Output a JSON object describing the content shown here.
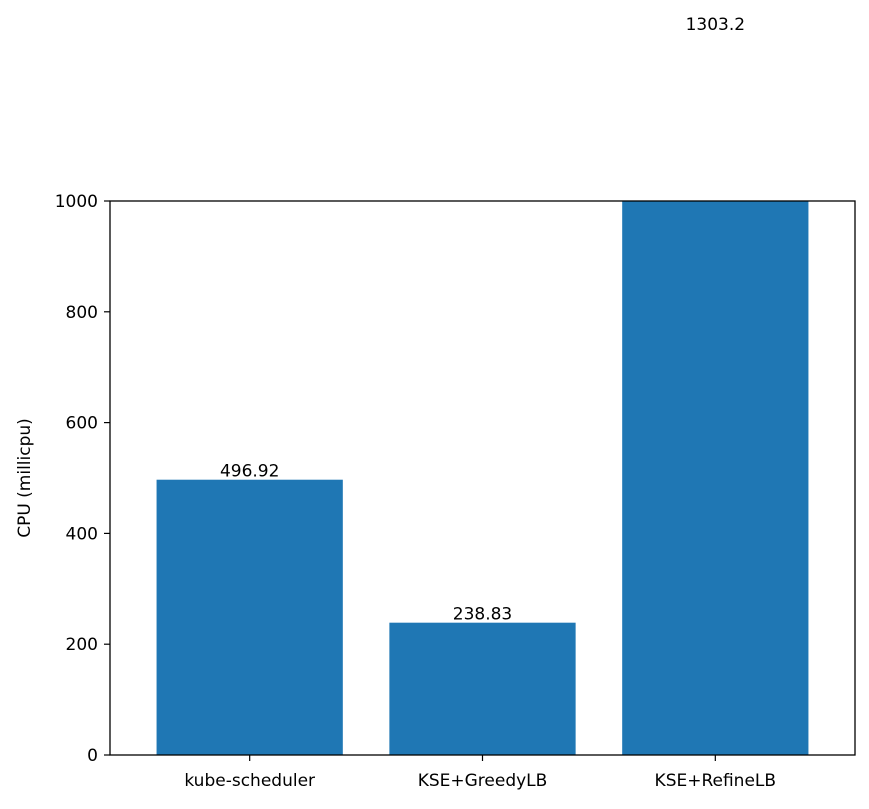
{
  "chart_data": {
    "type": "bar",
    "title": "",
    "xlabel": "",
    "ylabel": "CPU (millicpu)",
    "categories": [
      "kube-scheduler",
      "KSE+GreedyLB",
      "KSE+RefineLB"
    ],
    "values": [
      496.92,
      238.83,
      1303.2
    ],
    "data_labels": [
      "496.92",
      "238.83",
      "1303.2"
    ],
    "ylim": [
      0,
      1000
    ],
    "yticks": [
      0,
      200,
      400,
      600,
      800,
      1000
    ],
    "bar_color": "#1f77b4",
    "grid": false,
    "legend": "none",
    "note": "bars exceeding the y-axis limit are clipped at the top of the plot area; their value labels are drawn at the true value position above the axes"
  }
}
